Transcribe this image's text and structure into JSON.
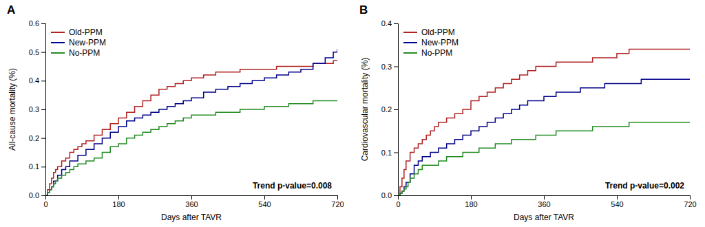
{
  "chart_data": [
    {
      "type": "step",
      "title": "A",
      "xlabel": "Days after TAVR",
      "ylabel": "All-cause mortality (%)",
      "xlim": [
        0,
        720
      ],
      "xticks": [
        0,
        180,
        360,
        540,
        720
      ],
      "ylim": [
        0.0,
        0.6
      ],
      "yticks": [
        {
          "value": 0.0,
          "label": "0.0"
        },
        0.1,
        0.2,
        0.3,
        0.4,
        0.5,
        0.6
      ],
      "grid": false,
      "legend": "upper left",
      "annotations": [
        "Trend p-value=0.008"
      ],
      "series": [
        {
          "name": "Old-PPM",
          "color": "#B22222",
          "x": [
            0,
            5,
            10,
            15,
            20,
            25,
            30,
            40,
            50,
            60,
            70,
            80,
            90,
            100,
            120,
            140,
            160,
            180,
            200,
            220,
            240,
            260,
            280,
            300,
            320,
            340,
            360,
            390,
            420,
            450,
            480,
            510,
            540,
            570,
            600,
            630,
            660,
            690,
            710,
            720
          ],
          "values": [
            0,
            0.02,
            0.04,
            0.06,
            0.08,
            0.09,
            0.1,
            0.12,
            0.13,
            0.15,
            0.16,
            0.17,
            0.18,
            0.19,
            0.21,
            0.23,
            0.25,
            0.27,
            0.29,
            0.31,
            0.33,
            0.35,
            0.37,
            0.38,
            0.39,
            0.4,
            0.41,
            0.42,
            0.43,
            0.43,
            0.44,
            0.44,
            0.44,
            0.45,
            0.45,
            0.45,
            0.46,
            0.46,
            0.47,
            0.47
          ]
        },
        {
          "name": "New-PPM",
          "color": "#00008B",
          "x": [
            0,
            5,
            10,
            15,
            20,
            30,
            40,
            50,
            60,
            80,
            100,
            120,
            140,
            160,
            180,
            200,
            220,
            240,
            260,
            280,
            300,
            320,
            340,
            360,
            390,
            420,
            450,
            480,
            510,
            540,
            570,
            600,
            630,
            660,
            690,
            710,
            720
          ],
          "values": [
            0,
            0.01,
            0.02,
            0.03,
            0.05,
            0.07,
            0.09,
            0.1,
            0.12,
            0.14,
            0.16,
            0.18,
            0.2,
            0.22,
            0.24,
            0.26,
            0.27,
            0.28,
            0.29,
            0.3,
            0.31,
            0.32,
            0.33,
            0.34,
            0.36,
            0.37,
            0.38,
            0.39,
            0.4,
            0.41,
            0.42,
            0.43,
            0.44,
            0.46,
            0.48,
            0.5,
            0.51
          ]
        },
        {
          "name": "No-PPM",
          "color": "#228B22",
          "x": [
            0,
            5,
            10,
            15,
            20,
            25,
            30,
            40,
            50,
            60,
            70,
            80,
            100,
            120,
            140,
            160,
            180,
            200,
            220,
            240,
            260,
            280,
            300,
            320,
            340,
            360,
            390,
            420,
            450,
            480,
            510,
            540,
            570,
            600,
            630,
            660,
            690,
            710,
            720
          ],
          "values": [
            0,
            0.01,
            0.02,
            0.03,
            0.04,
            0.05,
            0.06,
            0.07,
            0.08,
            0.09,
            0.1,
            0.11,
            0.12,
            0.13,
            0.15,
            0.17,
            0.18,
            0.2,
            0.21,
            0.22,
            0.23,
            0.24,
            0.25,
            0.26,
            0.27,
            0.28,
            0.28,
            0.29,
            0.29,
            0.3,
            0.3,
            0.31,
            0.31,
            0.32,
            0.32,
            0.33,
            0.33,
            0.33,
            0.33
          ]
        }
      ]
    },
    {
      "type": "step",
      "title": "B",
      "xlabel": "Days after TAVR",
      "ylabel": "Cardiovascular mortality (%)",
      "xlim": [
        0,
        720
      ],
      "xticks": [
        0,
        180,
        360,
        540,
        720
      ],
      "ylim": [
        0.0,
        0.4
      ],
      "yticks": [
        {
          "value": 0.0,
          "label": "0.0"
        },
        0.1,
        0.2,
        0.3,
        0.4
      ],
      "grid": false,
      "legend": "upper left",
      "annotations": [
        "Trend p-value=0.002"
      ],
      "series": [
        {
          "name": "Old-PPM",
          "color": "#B22222",
          "x": [
            0,
            5,
            10,
            15,
            20,
            30,
            40,
            50,
            60,
            70,
            80,
            90,
            100,
            120,
            140,
            160,
            180,
            200,
            220,
            240,
            260,
            280,
            300,
            320,
            340,
            360,
            390,
            420,
            450,
            480,
            510,
            540,
            570,
            600,
            630,
            660,
            690,
            710,
            720
          ],
          "values": [
            0,
            0.02,
            0.04,
            0.06,
            0.08,
            0.1,
            0.11,
            0.12,
            0.13,
            0.14,
            0.15,
            0.16,
            0.17,
            0.18,
            0.19,
            0.2,
            0.22,
            0.23,
            0.24,
            0.25,
            0.26,
            0.27,
            0.28,
            0.29,
            0.3,
            0.3,
            0.31,
            0.31,
            0.31,
            0.32,
            0.32,
            0.33,
            0.34,
            0.34,
            0.34,
            0.34,
            0.34,
            0.34,
            0.34
          ]
        },
        {
          "name": "New-PPM",
          "color": "#00008B",
          "x": [
            0,
            5,
            10,
            15,
            20,
            30,
            40,
            50,
            60,
            80,
            100,
            120,
            140,
            160,
            180,
            200,
            220,
            240,
            260,
            280,
            300,
            320,
            340,
            360,
            390,
            420,
            450,
            480,
            510,
            540,
            570,
            600,
            630,
            660,
            690,
            710,
            720
          ],
          "values": [
            0,
            0.005,
            0.01,
            0.02,
            0.03,
            0.05,
            0.07,
            0.08,
            0.09,
            0.1,
            0.11,
            0.12,
            0.13,
            0.14,
            0.15,
            0.16,
            0.17,
            0.18,
            0.19,
            0.2,
            0.21,
            0.22,
            0.22,
            0.23,
            0.24,
            0.24,
            0.25,
            0.25,
            0.26,
            0.26,
            0.26,
            0.27,
            0.27,
            0.27,
            0.27,
            0.27,
            0.27
          ]
        },
        {
          "name": "No-PPM",
          "color": "#228B22",
          "x": [
            0,
            5,
            10,
            15,
            20,
            25,
            30,
            40,
            50,
            60,
            70,
            80,
            100,
            120,
            140,
            160,
            180,
            200,
            220,
            240,
            260,
            280,
            300,
            320,
            340,
            360,
            390,
            420,
            450,
            480,
            510,
            540,
            570,
            600,
            630,
            660,
            690,
            710,
            720
          ],
          "values": [
            0,
            0.005,
            0.01,
            0.015,
            0.02,
            0.03,
            0.04,
            0.05,
            0.06,
            0.07,
            0.07,
            0.07,
            0.08,
            0.09,
            0.09,
            0.1,
            0.1,
            0.11,
            0.11,
            0.12,
            0.12,
            0.13,
            0.13,
            0.13,
            0.14,
            0.14,
            0.15,
            0.15,
            0.15,
            0.16,
            0.16,
            0.16,
            0.17,
            0.17,
            0.17,
            0.17,
            0.17,
            0.17,
            0.17
          ]
        }
      ]
    }
  ]
}
